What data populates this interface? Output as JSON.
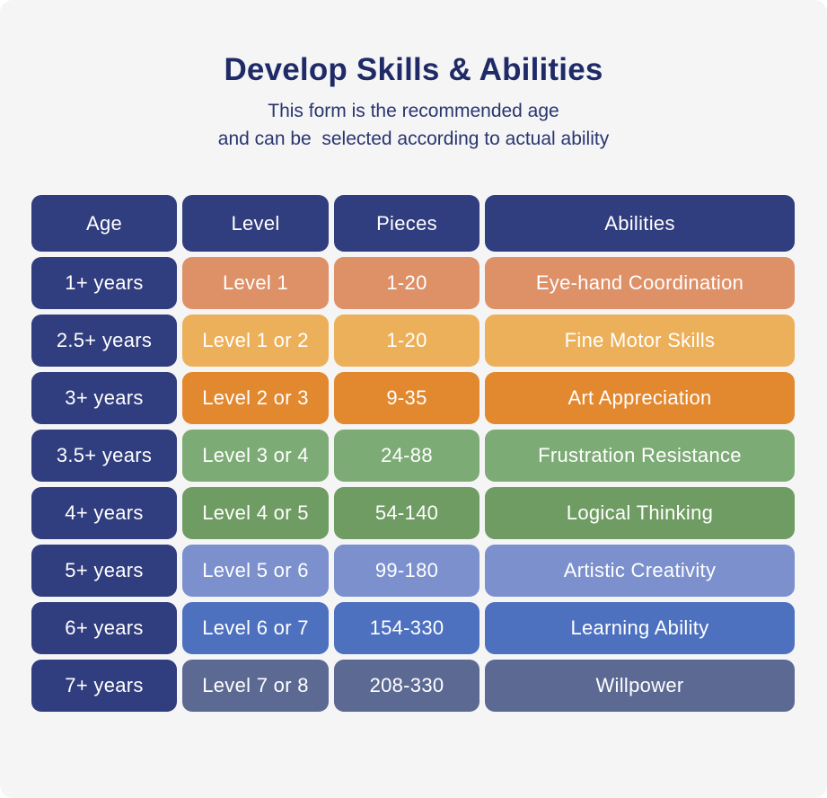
{
  "page": {
    "background": "#f5f5f6",
    "title_color": "#1f2a67"
  },
  "header": {
    "title": "Develop Skills & Abilities",
    "subtitle_line1": "This form is the recommended age",
    "subtitle_line2": "and can be  selected according to actual ability"
  },
  "table": {
    "navy": "#303d7e",
    "text_color": "#ffffff",
    "columns": {
      "age": "Age",
      "level": "Level",
      "pieces": "Pieces",
      "abilities": "Abilities"
    },
    "rows": [
      {
        "age": "1+ years",
        "level": "Level 1",
        "pieces": "1-20",
        "ability": "Eye-hand Coordination",
        "color": "#de9067"
      },
      {
        "age": "2.5+ years",
        "level": "Level 1 or 2",
        "pieces": "1-20",
        "ability": "Fine Motor Skills",
        "color": "#ecb05a"
      },
      {
        "age": "3+ years",
        "level": "Level 2 or 3",
        "pieces": "9-35",
        "ability": "Art Appreciation",
        "color": "#e2882f"
      },
      {
        "age": "3.5+ years",
        "level": "Level 3 or 4",
        "pieces": "24-88",
        "ability": "Frustration Resistance",
        "color": "#7dab75"
      },
      {
        "age": "4+ years",
        "level": "Level 4 or 5",
        "pieces": "54-140",
        "ability": "Logical Thinking",
        "color": "#6f9c63"
      },
      {
        "age": "5+ years",
        "level": "Level 5 or 6",
        "pieces": "99-180",
        "ability": "Artistic Creativity",
        "color": "#7b90cd"
      },
      {
        "age": "6+ years",
        "level": "Level 6 or 7",
        "pieces": "154-330",
        "ability": "Learning Ability",
        "color": "#4d71bf"
      },
      {
        "age": "7+ years",
        "level": "Level 7 or 8",
        "pieces": "208-330",
        "ability": "Willpower",
        "color": "#5c6a93"
      }
    ]
  },
  "chart_data": {
    "type": "table",
    "title": "Develop Skills & Abilities",
    "subtitle": "This form is the recommended age and can be selected according to actual ability",
    "columns": [
      "Age",
      "Level",
      "Pieces",
      "Abilities"
    ],
    "rows": [
      [
        "1+ years",
        "Level 1",
        "1-20",
        "Eye-hand Coordination"
      ],
      [
        "2.5+ years",
        "Level 1 or 2",
        "1-20",
        "Fine Motor Skills"
      ],
      [
        "3+ years",
        "Level 2 or 3",
        "9-35",
        "Art Appreciation"
      ],
      [
        "3.5+ years",
        "Level 3 or 4",
        "24-88",
        "Frustration Resistance"
      ],
      [
        "4+ years",
        "Level 4 or 5",
        "54-140",
        "Logical Thinking"
      ],
      [
        "5+ years",
        "Level 5 or 6",
        "99-180",
        "Artistic Creativity"
      ],
      [
        "6+ years",
        "Level 6 or 7",
        "154-330",
        "Learning Ability"
      ],
      [
        "7+ years",
        "Level 7 or 8",
        "208-330",
        "Willpower"
      ]
    ],
    "row_colors": [
      "#de9067",
      "#ecb05a",
      "#e2882f",
      "#7dab75",
      "#6f9c63",
      "#7b90cd",
      "#4d71bf",
      "#5c6a93"
    ],
    "header_color": "#303d7e"
  }
}
